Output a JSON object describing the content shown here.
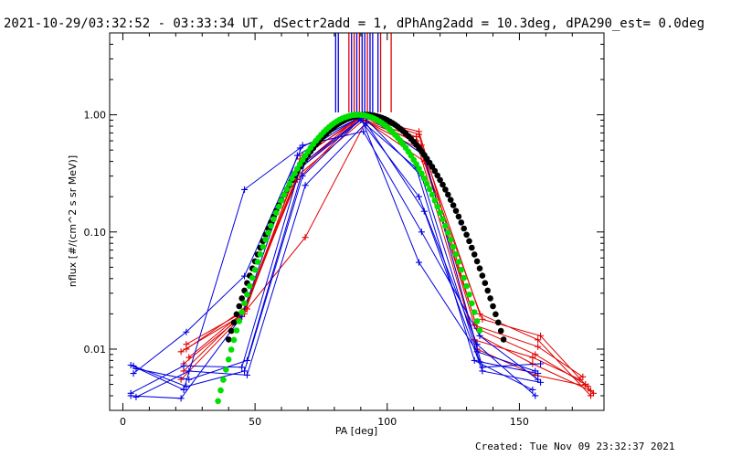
{
  "header": {
    "title": "2021-10-29/03:32:52 - 03:33:34 UT, dSectr2add = 1, dPhAng2add = 10.3deg, dPA290_est=  0.0deg"
  },
  "footer": {
    "created": "Created: Tue Nov 09 23:32:37 2021"
  },
  "chart_data": {
    "type": "line",
    "xlabel": "PA [deg]",
    "ylabel": "nflux [#/(cm^2 s sr MeV)]",
    "xlim": [
      -5,
      182
    ],
    "ylim": [
      0.003,
      5
    ],
    "yscale": "log",
    "x_ticks": [
      0,
      50,
      100,
      150
    ],
    "x_tick_labels": [
      "0",
      "50",
      "100",
      "150"
    ],
    "y_ticks": [
      0.01,
      0.1,
      1.0
    ],
    "y_tick_labels": [
      "0.01",
      "0.10",
      "1.00"
    ],
    "grid": false,
    "colors": {
      "red": "#e00000",
      "blue": "#0000e0",
      "green": "#00e000",
      "black": "#000000"
    },
    "vertical_markers": [
      {
        "x": 80.5,
        "color": "#0000e0"
      },
      {
        "x": 81.5,
        "color": "#0000e0"
      },
      {
        "x": 85.5,
        "color": "#e00000"
      },
      {
        "x": 86.5,
        "color": "#0000e0"
      },
      {
        "x": 87.5,
        "color": "#e00000"
      },
      {
        "x": 88.5,
        "color": "#0000e0"
      },
      {
        "x": 89.5,
        "color": "#e00000"
      },
      {
        "x": 90.5,
        "color": "#0000e0"
      },
      {
        "x": 91.5,
        "color": "#0000e0"
      },
      {
        "x": 92.5,
        "color": "#e00000"
      },
      {
        "x": 93.5,
        "color": "#0000e0"
      },
      {
        "x": 94.5,
        "color": "#0000e0"
      },
      {
        "x": 96.5,
        "color": "#0000e0"
      },
      {
        "x": 97.5,
        "color": "#e00000"
      },
      {
        "x": 101.5,
        "color": "#e00000"
      }
    ],
    "fits": [
      {
        "color": "#000000",
        "center": 92,
        "sigma": 17.5,
        "xmin": 40,
        "xmax": 144
      },
      {
        "color": "#00e000",
        "center": 89,
        "sigma": 15.8,
        "xmin": 36,
        "xmax": 135
      }
    ],
    "series": [
      {
        "color": "#e00000",
        "x": [
          23,
          45,
          67,
          90,
          112,
          134,
          156,
          175
        ],
        "y": [
          0.0065,
          0.02,
          0.35,
          0.95,
          0.72,
          0.015,
          0.009,
          0.005
        ]
      },
      {
        "color": "#e00000",
        "x": [
          24,
          46,
          68,
          91,
          113,
          135,
          157,
          177
        ],
        "y": [
          0.01,
          0.022,
          0.45,
          0.97,
          0.55,
          0.02,
          0.012,
          0.004
        ]
      },
      {
        "color": "#e00000",
        "x": [
          22,
          44,
          66,
          89,
          111,
          133,
          155,
          173
        ],
        "y": [
          0.0055,
          0.018,
          0.28,
          0.93,
          0.6,
          0.012,
          0.0085,
          0.0055
        ]
      },
      {
        "color": "#e00000",
        "x": [
          25,
          47,
          69,
          92,
          114,
          136,
          158,
          178
        ],
        "y": [
          0.0085,
          0.022,
          0.09,
          0.88,
          0.4,
          0.018,
          0.013,
          0.0042
        ]
      },
      {
        "color": "#e00000",
        "x": [
          23,
          45,
          68,
          90,
          112,
          134,
          156,
          176
        ],
        "y": [
          0.0075,
          0.019,
          0.38,
          0.98,
          0.68,
          0.01,
          0.006,
          0.0048
        ]
      },
      {
        "color": "#e00000",
        "x": [
          24,
          46,
          66,
          91,
          113,
          133,
          157,
          174
        ],
        "y": [
          0.011,
          0.021,
          0.3,
          0.9,
          0.5,
          0.016,
          0.0105,
          0.0058
        ]
      },
      {
        "color": "#e00000",
        "x": [
          22,
          46,
          67,
          89,
          111,
          135,
          155,
          177
        ],
        "y": [
          0.0095,
          0.02,
          0.42,
          0.94,
          0.65,
          0.013,
          0.0075,
          0.0044
        ]
      },
      {
        "color": "#0000e0",
        "x": [
          3,
          23,
          46,
          67,
          90,
          112,
          134,
          156
        ],
        "y": [
          0.0073,
          0.0045,
          0.23,
          0.52,
          0.96,
          0.055,
          0.0095,
          0.0065
        ]
      },
      {
        "color": "#0000e0",
        "x": [
          4,
          24,
          46,
          68,
          91,
          113,
          135,
          157
        ],
        "y": [
          0.0062,
          0.014,
          0.042,
          0.55,
          0.72,
          0.1,
          0.013,
          0.0055
        ]
      },
      {
        "color": "#0000e0",
        "x": [
          3,
          22,
          45,
          66,
          89,
          111,
          133,
          155
        ],
        "y": [
          0.004,
          0.0038,
          0.019,
          0.45,
          0.94,
          0.35,
          0.008,
          0.0045
        ]
      },
      {
        "color": "#0000e0",
        "x": [
          5,
          25,
          47,
          69,
          92,
          114,
          136,
          158
        ],
        "y": [
          0.0068,
          0.0055,
          0.008,
          0.4,
          0.99,
          0.45,
          0.007,
          0.0075
        ]
      },
      {
        "color": "#0000e0",
        "x": [
          3,
          23,
          45,
          67,
          90,
          112,
          134,
          156
        ],
        "y": [
          0.0042,
          0.0072,
          0.007,
          0.35,
          0.9,
          0.2,
          0.011,
          0.004
        ]
      },
      {
        "color": "#0000e0",
        "x": [
          4,
          24,
          46,
          68,
          91,
          113,
          135,
          157
        ],
        "y": [
          0.0072,
          0.0048,
          0.0065,
          0.3,
          0.97,
          0.3,
          0.0078,
          0.0062
        ]
      },
      {
        "color": "#0000e0",
        "x": [
          5,
          25,
          47,
          69,
          92,
          114,
          136,
          158
        ],
        "y": [
          0.0039,
          0.0065,
          0.006,
          0.25,
          0.85,
          0.15,
          0.0065,
          0.0052
        ]
      }
    ]
  }
}
